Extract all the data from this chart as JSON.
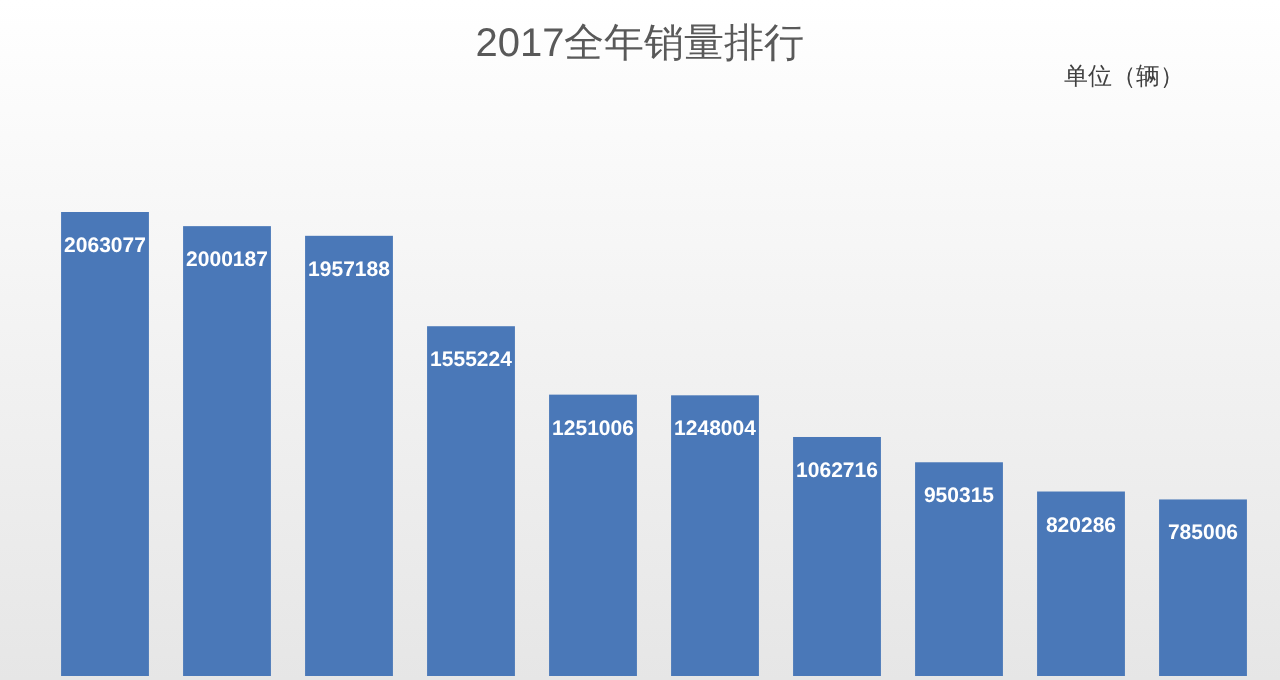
{
  "chart_data": {
    "type": "bar",
    "title": "2017全年销量排行",
    "annotations": [
      "单位（辆）"
    ],
    "categories": [
      null,
      null,
      null,
      null,
      null,
      null,
      null,
      null,
      null,
      null
    ],
    "values": [
      2063077,
      2000187,
      1957188,
      1555224,
      1251006,
      1248004,
      1062716,
      950315,
      820286,
      785006
    ],
    "color": "#4a78b8",
    "data_labels": true
  }
}
